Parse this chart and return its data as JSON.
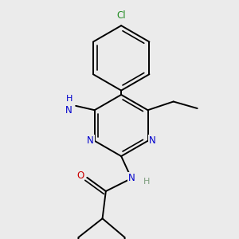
{
  "bg_color": "#ebebeb",
  "atom_colors": {
    "C": "#000000",
    "N": "#0000cc",
    "O": "#cc0000",
    "Cl": "#228B22",
    "H": "#7f9f7f"
  },
  "bond_color": "#000000",
  "bond_width": 1.4,
  "font_size_atom": 8.5,
  "title": ""
}
